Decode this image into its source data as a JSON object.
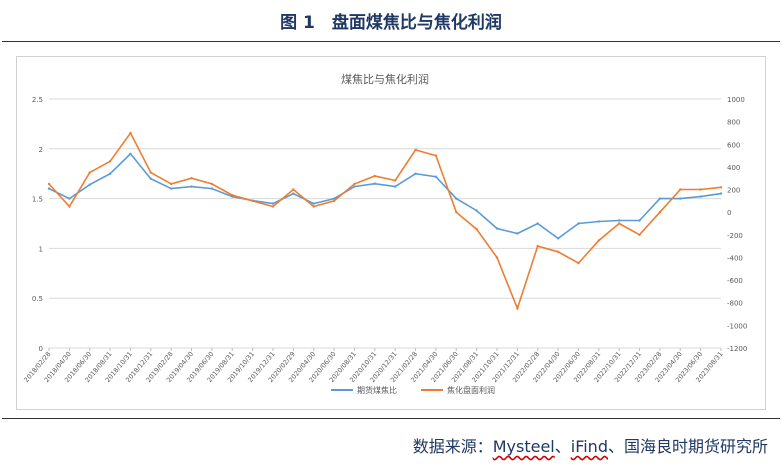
{
  "figure": {
    "title": "图 1　盘面煤焦比与焦化利润",
    "source_prefix": "数据来源：",
    "source_items": [
      "Mysteel",
      "、",
      "iFind",
      "、国海良时期货研究所"
    ]
  },
  "colors": {
    "ratio": "#5b9bd5",
    "profit": "#ed7d31",
    "title": "#1f3864",
    "axis_text": "#595959"
  },
  "chart_data": {
    "type": "line",
    "title": "煤焦比与焦化利润",
    "x": [
      "2018/02/28",
      "2018/04/30",
      "2018/06/30",
      "2018/08/31",
      "2018/10/31",
      "2018/12/31",
      "2019/02/28",
      "2019/04/30",
      "2019/06/30",
      "2019/08/31",
      "2019/10/31",
      "2019/12/31",
      "2020/02/29",
      "2020/04/30",
      "2020/06/30",
      "2020/08/31",
      "2020/10/31",
      "2020/12/31",
      "2021/02/28",
      "2021/04/30",
      "2021/06/30",
      "2021/08/31",
      "2021/10/31",
      "2021/12/31",
      "2022/02/28",
      "2022/04/30",
      "2022/06/30",
      "2022/08/31",
      "2022/10/31",
      "2022/12/31",
      "2023/02/28",
      "2023/04/30",
      "2023/06/30",
      "2023/08/31"
    ],
    "y_left": {
      "ticks": [
        "0",
        "0.5",
        "1",
        "1.5",
        "2",
        "2.5"
      ],
      "min": 0,
      "max": 2.5
    },
    "y_right": {
      "ticks": [
        "-1200",
        "-1000",
        "-800",
        "-600",
        "-400",
        "-200",
        "0",
        "200",
        "400",
        "600",
        "800",
        "1000"
      ],
      "min": -1200,
      "max": 1000
    },
    "series": [
      {
        "name": "期货煤焦比",
        "axis": "left",
        "values": [
          1.6,
          1.5,
          1.64,
          1.75,
          1.95,
          1.7,
          1.6,
          1.62,
          1.6,
          1.52,
          1.48,
          1.45,
          1.55,
          1.45,
          1.5,
          1.62,
          1.65,
          1.62,
          1.75,
          1.72,
          1.5,
          1.38,
          1.2,
          1.15,
          1.25,
          1.1,
          1.25,
          1.27,
          1.28,
          1.28,
          1.5,
          1.5,
          1.52,
          1.55
        ]
      },
      {
        "name": "焦化盘面利润",
        "axis": "right",
        "values": [
          250,
          50,
          350,
          450,
          700,
          350,
          250,
          300,
          250,
          150,
          100,
          50,
          200,
          50,
          100,
          250,
          320,
          280,
          550,
          500,
          0,
          -150,
          -400,
          -850,
          -300,
          -350,
          -450,
          -250,
          -100,
          -200,
          0,
          200,
          200,
          220
        ]
      }
    ],
    "grid": true,
    "legend": "bottom"
  }
}
